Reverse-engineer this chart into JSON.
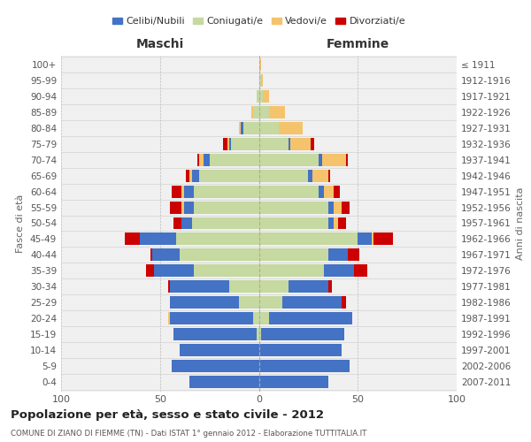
{
  "age_groups": [
    "0-4",
    "5-9",
    "10-14",
    "15-19",
    "20-24",
    "25-29",
    "30-34",
    "35-39",
    "40-44",
    "45-49",
    "50-54",
    "55-59",
    "60-64",
    "65-69",
    "70-74",
    "75-79",
    "80-84",
    "85-89",
    "90-94",
    "95-99",
    "100+"
  ],
  "birth_years": [
    "2007-2011",
    "2002-2006",
    "1997-2001",
    "1992-1996",
    "1987-1991",
    "1982-1986",
    "1977-1981",
    "1972-1976",
    "1967-1971",
    "1962-1966",
    "1957-1961",
    "1952-1956",
    "1947-1951",
    "1942-1946",
    "1937-1941",
    "1932-1936",
    "1927-1931",
    "1922-1926",
    "1917-1921",
    "1912-1916",
    "≤ 1911"
  ],
  "maschi_celibi": [
    35,
    44,
    40,
    42,
    42,
    35,
    30,
    20,
    14,
    18,
    5,
    5,
    5,
    4,
    3,
    1,
    1,
    0,
    0,
    0,
    0
  ],
  "maschi_coniugati": [
    0,
    0,
    0,
    1,
    3,
    10,
    15,
    33,
    40,
    42,
    34,
    33,
    33,
    30,
    25,
    14,
    8,
    3,
    1,
    0,
    0
  ],
  "maschi_vedovi": [
    0,
    0,
    0,
    0,
    1,
    0,
    0,
    0,
    0,
    0,
    0,
    1,
    1,
    1,
    2,
    1,
    1,
    1,
    0,
    0,
    0
  ],
  "maschi_divorziati": [
    0,
    0,
    0,
    0,
    0,
    0,
    1,
    4,
    1,
    8,
    4,
    6,
    5,
    2,
    1,
    2,
    0,
    0,
    0,
    0,
    0
  ],
  "femmine_celibi": [
    35,
    46,
    42,
    42,
    42,
    30,
    20,
    15,
    10,
    7,
    3,
    3,
    3,
    2,
    2,
    1,
    0,
    0,
    0,
    0,
    0
  ],
  "femmine_coniugati": [
    0,
    0,
    0,
    1,
    5,
    12,
    15,
    33,
    35,
    50,
    35,
    35,
    30,
    25,
    30,
    15,
    10,
    5,
    2,
    1,
    0
  ],
  "femmine_vedovi": [
    0,
    0,
    0,
    0,
    0,
    0,
    0,
    0,
    0,
    1,
    2,
    4,
    5,
    8,
    12,
    10,
    12,
    8,
    3,
    1,
    1
  ],
  "femmine_divorziati": [
    0,
    0,
    0,
    0,
    0,
    2,
    2,
    7,
    6,
    10,
    4,
    4,
    3,
    1,
    1,
    2,
    0,
    0,
    0,
    0,
    0
  ],
  "colors": {
    "celibi": "#4472C4",
    "coniugati": "#c5d9a0",
    "vedovi": "#f5c36b",
    "divorziati": "#cc0000"
  },
  "title": "Popolazione per età, sesso e stato civile - 2012",
  "subtitle": "COMUNE DI ZIANO DI FIEMME (TN) - Dati ISTAT 1° gennaio 2012 - Elaborazione TUTTITALIA.IT",
  "ylabel_left": "Fasce di età",
  "ylabel_right": "Anni di nascita",
  "xlabel_maschi": "Maschi",
  "xlabel_femmine": "Femmine",
  "xlim": 100,
  "bg_color": "#f0f0f0",
  "legend_labels": [
    "Celibi/Nubili",
    "Coniugati/e",
    "Vedovi/e",
    "Divorziati/e"
  ]
}
